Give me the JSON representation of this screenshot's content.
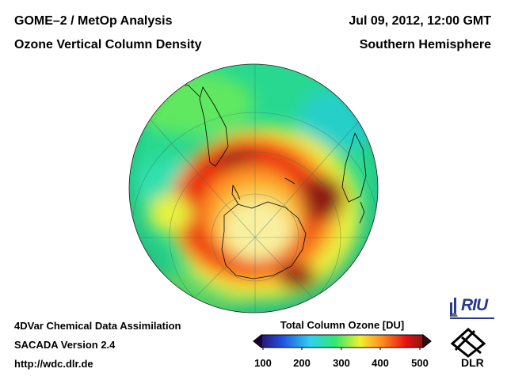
{
  "header": {
    "title_line1": "GOME–2 / MetOp Analysis",
    "title_line2": "Ozone Vertical Column Density",
    "date_line": "Jul 09, 2012, 12:00 GMT",
    "region_line": "Southern Hemisphere"
  },
  "footer": {
    "line1": "4DVar Chemical Data Assimilation",
    "line2": "SACADA Version 2.4",
    "line3": "http://wdc.dlr.de"
  },
  "colorbar": {
    "title": "Total Column Ozone [DU]",
    "ticks": [
      "100",
      "200",
      "300",
      "400",
      "500"
    ],
    "colors": [
      "#2a0050",
      "#2050e0",
      "#30d0f0",
      "#30e870",
      "#f0f030",
      "#ff9020",
      "#e81010",
      "#601818"
    ]
  },
  "logos": {
    "riu": "RIU",
    "dlr": "DLR"
  },
  "map": {
    "ocean_color": "#28d890",
    "land_outline_color": "#000000"
  }
}
